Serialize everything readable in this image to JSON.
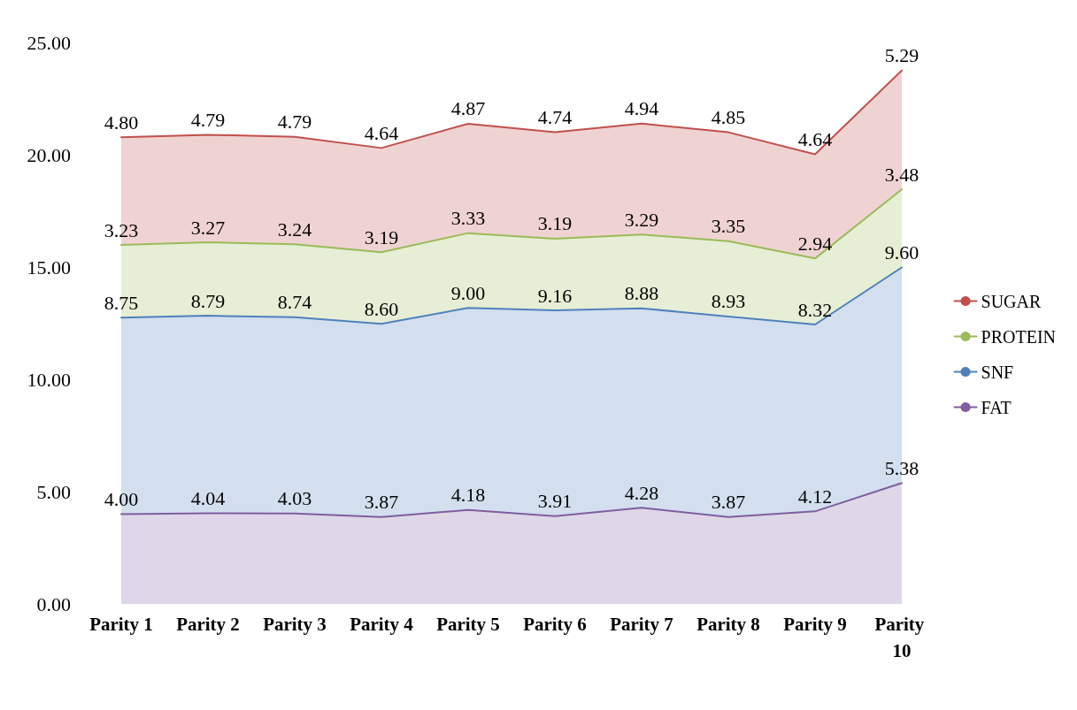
{
  "chart_data": {
    "type": "area",
    "stacked": true,
    "categories": [
      "Parity 1",
      "Parity 2",
      "Parity 3",
      "Parity 4",
      "Parity 5",
      "Parity 6",
      "Parity 7",
      "Parity 8",
      "Parity 9",
      "Parity 10"
    ],
    "series": [
      {
        "name": "FAT",
        "color": "#7f5f9f",
        "values": [
          4.0,
          4.04,
          4.03,
          3.87,
          4.18,
          3.91,
          4.28,
          3.87,
          4.12,
          5.38
        ],
        "value_labels": [
          "4.00",
          "4.04",
          "4.03",
          "3.87",
          "4.18",
          "3.91",
          "4.28",
          "3.87",
          "4.12",
          "5.38"
        ]
      },
      {
        "name": "SNF",
        "color": "#4f81bd",
        "values": [
          8.75,
          8.79,
          8.74,
          8.6,
          9.0,
          9.16,
          8.88,
          8.93,
          8.32,
          9.6
        ],
        "value_labels": [
          "8.75",
          "8.79",
          "8.74",
          "8.60",
          "9.00",
          "9.16",
          "8.88",
          "8.93",
          "8.32",
          "9.60"
        ]
      },
      {
        "name": "PROTEIN",
        "color": "#9bbb59",
        "values": [
          3.23,
          3.27,
          3.24,
          3.19,
          3.33,
          3.19,
          3.29,
          3.35,
          2.94,
          3.48
        ],
        "value_labels": [
          "3.23",
          "3.27",
          "3.24",
          "3.19",
          "3.33",
          "3.19",
          "3.29",
          "3.35",
          "2.94",
          "3.48"
        ]
      },
      {
        "name": "SUGAR",
        "color": "#c0504d",
        "values": [
          4.8,
          4.79,
          4.79,
          4.64,
          4.87,
          4.74,
          4.94,
          4.85,
          4.64,
          5.29
        ],
        "value_labels": [
          "4.80",
          "4.79",
          "4.79",
          "4.64",
          "4.87",
          "4.74",
          "4.94",
          "4.85",
          "4.64",
          "5.29"
        ]
      }
    ],
    "ylim": [
      0,
      25
    ],
    "yticks": [
      {
        "value": 0,
        "label": "0.00"
      },
      {
        "value": 5,
        "label": "5.00"
      },
      {
        "value": 10,
        "label": "10.00"
      },
      {
        "value": 15,
        "label": "15.00"
      },
      {
        "value": 20,
        "label": "20.00"
      },
      {
        "value": 25,
        "label": "25.00"
      }
    ],
    "legend": "right",
    "grid": false,
    "marker": "none",
    "line_style": "solid"
  }
}
